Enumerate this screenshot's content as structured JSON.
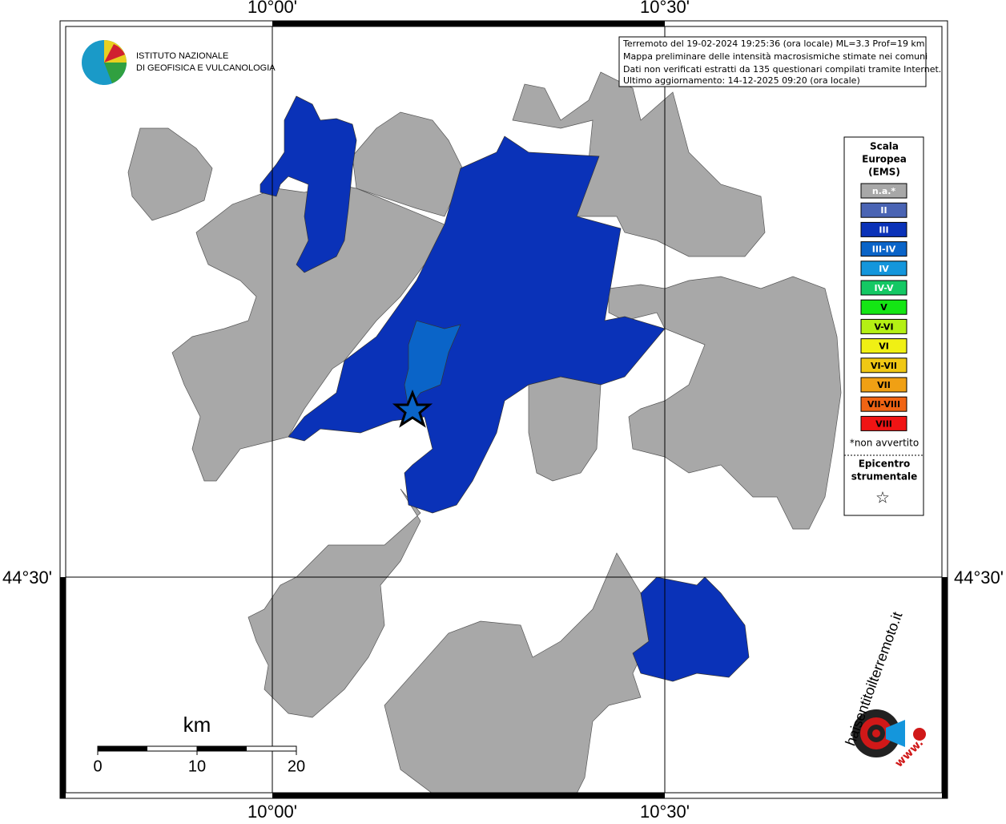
{
  "grid": {
    "lon_labels": [
      "10°00'",
      "10°30'"
    ],
    "lat_labels": [
      "44°30'"
    ]
  },
  "institute": {
    "line1": "ISTITUTO NAZIONALE",
    "line2": "DI GEOFISICA E VULCANOLOGIA"
  },
  "info": [
    "Terremoto del 19-02-2024 19:25:36 (ora locale) ML=3.3 Prof=19 km",
    "Mappa preliminare delle intensità macrosismiche stimate nei comuni",
    "Dati non verificati estratti da 135 questionari compilati tramite Internet.",
    "Ultimo aggiornamento: 14-12-2025 09:20 (ora locale)"
  ],
  "legend": {
    "title": [
      "Scala",
      "Europea",
      "(EMS)"
    ],
    "items": [
      {
        "label": "n.a.*",
        "color": "#a8a8a8"
      },
      {
        "label": "II",
        "color": "#4a64b4"
      },
      {
        "label": "III",
        "color": "#0a32b8"
      },
      {
        "label": "III-IV",
        "color": "#0a64c8"
      },
      {
        "label": "IV",
        "color": "#1496dc"
      },
      {
        "label": "IV-V",
        "color": "#14c864"
      },
      {
        "label": "V",
        "color": "#14e614"
      },
      {
        "label": "V-VI",
        "color": "#b4f014"
      },
      {
        "label": "VI",
        "color": "#f0f014"
      },
      {
        "label": "VI-VII",
        "color": "#f0c814"
      },
      {
        "label": "VII",
        "color": "#f0a014"
      },
      {
        "label": "VII-VIII",
        "color": "#f06414"
      },
      {
        "label": "VIII",
        "color": "#f01414"
      }
    ],
    "note": "*non avvertito",
    "epicenter": [
      "Epicentro",
      "strumentale"
    ],
    "star": "☆"
  },
  "scale_bar": {
    "unit": "km",
    "ticks": [
      0,
      10,
      20
    ]
  },
  "site": {
    "name": "haisentitoilterremoto.it",
    "prefix": "www."
  }
}
